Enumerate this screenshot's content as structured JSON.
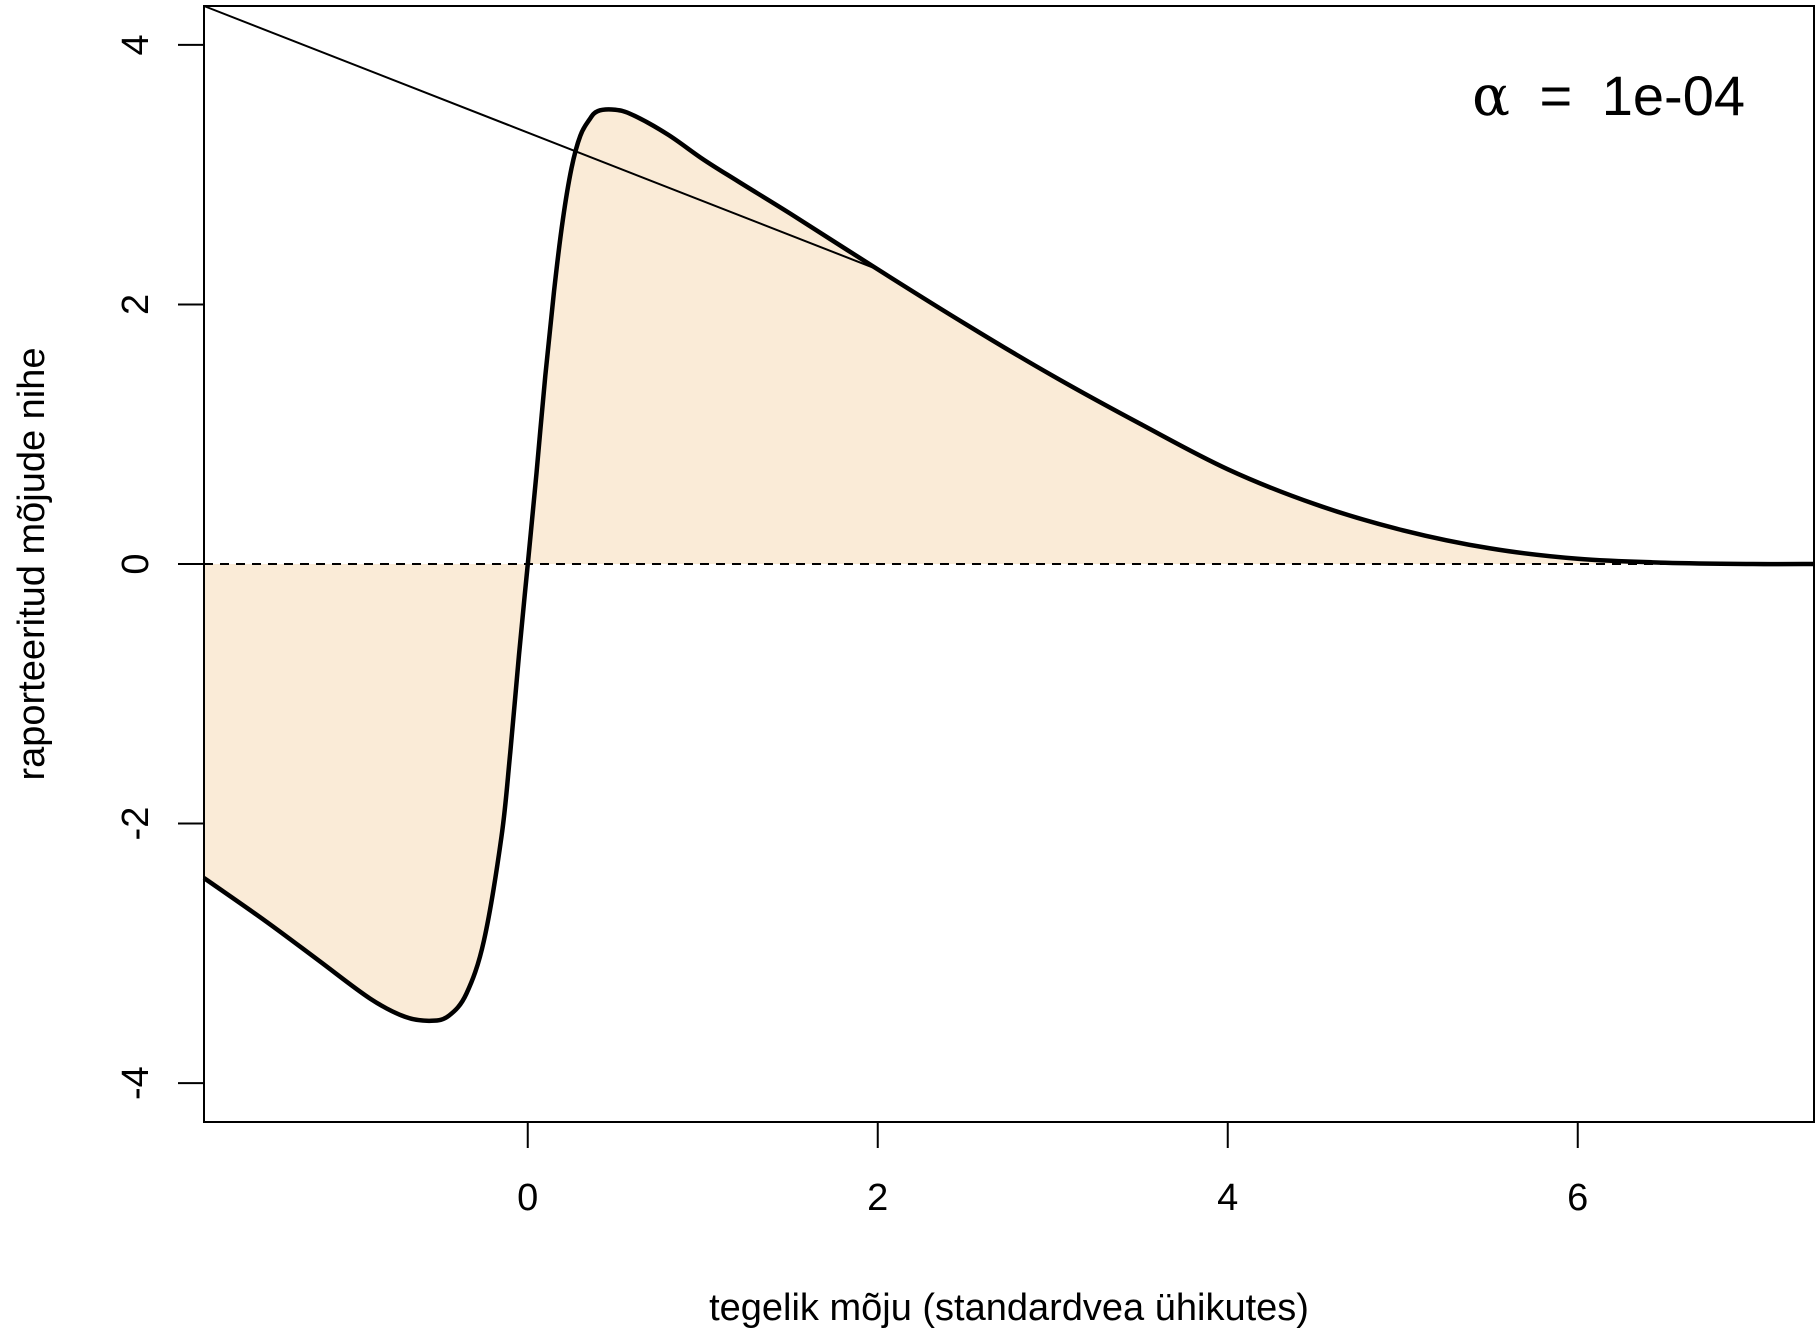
{
  "chart_data": {
    "type": "line",
    "title": "",
    "xlabel": "tegelik mõju (standardvea ühikutes)",
    "ylabel": "raporteeritud mõjude nihe",
    "xlim": [
      -1.85,
      7.35
    ],
    "ylim": [
      -4.3,
      4.3
    ],
    "x_ticks": [
      "0",
      "2",
      "4",
      "6"
    ],
    "y_ticks": [
      "-4",
      "-2",
      "0",
      "2",
      "4"
    ],
    "grid": false,
    "annotation": {
      "symbol": "α",
      "equals": "=",
      "value": "1e-04",
      "placement": "top-right"
    },
    "fill_color": "#FAEBD7",
    "series": [
      {
        "style": "thick-black",
        "x": [
          -1.85,
          -1.5,
          -1.2,
          -0.9,
          -0.7,
          -0.55,
          -0.45,
          -0.35,
          -0.25,
          -0.15,
          -0.1,
          -0.05,
          0.0,
          0.05,
          0.1,
          0.15,
          0.2,
          0.25,
          0.3,
          0.35,
          0.4,
          0.5,
          0.6,
          0.8,
          1.0,
          1.2,
          1.5,
          2.0,
          2.5,
          3.0,
          3.5,
          4.0,
          4.5,
          5.0,
          5.5,
          6.0,
          6.5,
          7.0,
          7.35
        ],
        "y": [
          -2.42,
          -2.75,
          -3.05,
          -3.35,
          -3.49,
          -3.52,
          -3.48,
          -3.31,
          -2.9,
          -2.1,
          -1.45,
          -0.7,
          0.0,
          0.7,
          1.45,
          2.1,
          2.65,
          3.05,
          3.3,
          3.42,
          3.49,
          3.5,
          3.46,
          3.31,
          3.12,
          2.95,
          2.7,
          2.27,
          1.85,
          1.45,
          1.08,
          0.73,
          0.46,
          0.26,
          0.12,
          0.04,
          0.01,
          0.0,
          0.0
        ]
      },
      {
        "style": "thin-black",
        "x": [
          -1.85,
          2.0
        ],
        "y": [
          4.3,
          2.27
        ]
      },
      {
        "style": "dashed-black",
        "x": [
          -1.85,
          7.35
        ],
        "y": [
          0,
          0
        ]
      }
    ]
  }
}
